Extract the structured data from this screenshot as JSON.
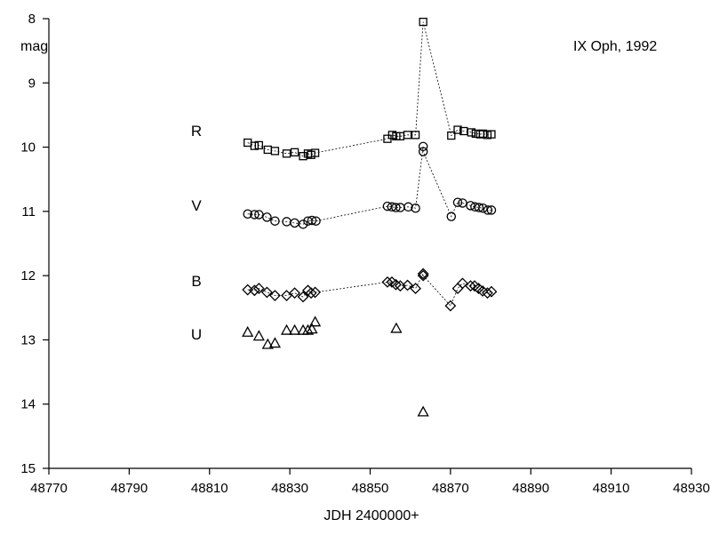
{
  "chart_data": {
    "type": "scatter",
    "title": "IX Oph,  1992",
    "xlabel": "JDH 2400000+",
    "ylabel": "mag",
    "xlim": [
      48770,
      48930
    ],
    "ylim": [
      8,
      15
    ],
    "y_inverted": true,
    "grid": false,
    "xticks": [
      "48770",
      "48790",
      "48810",
      "48830",
      "48850",
      "48870",
      "48890",
      "48910",
      "48930"
    ],
    "yticks": [
      "8",
      "9",
      "10",
      "11",
      "12",
      "13",
      "14",
      "15"
    ],
    "series": [
      {
        "name": "R",
        "marker": "square",
        "connected": true,
        "x": [
          48819.5,
          48821.2,
          48822.3,
          48824.5,
          48826.3,
          48829.2,
          48831.2,
          48833.3,
          48834.5,
          48835.3,
          48836.3,
          48854.3,
          48855.5,
          48856.5,
          48857.5,
          48859.3,
          48861.3,
          48863.2,
          48870.2,
          48871.8,
          48873.3,
          48875.2,
          48876.3,
          48877.4,
          48878.1,
          48879.2,
          48880.2
        ],
        "y": [
          9.93,
          9.98,
          9.97,
          10.04,
          10.06,
          10.1,
          10.08,
          10.14,
          10.1,
          10.12,
          10.09,
          9.87,
          9.81,
          9.83,
          9.83,
          9.81,
          9.81,
          8.05,
          9.82,
          9.73,
          9.75,
          9.77,
          9.79,
          9.8,
          9.79,
          9.81,
          9.8
        ]
      },
      {
        "name": "V",
        "marker": "circle",
        "connected": true,
        "x": [
          48819.5,
          48821.2,
          48822.3,
          48824.3,
          48826.3,
          48829.2,
          48831.2,
          48833.3,
          48834.5,
          48835.5,
          48836.5,
          48854.3,
          48855.4,
          48856.4,
          48857.5,
          48859.5,
          48861.3,
          48863.2,
          48863.2,
          48870.2,
          48871.8,
          48873.0,
          48875.0,
          48876.1,
          48877.1,
          48878.1,
          48879.3,
          48880.2
        ],
        "y": [
          11.04,
          11.05,
          11.05,
          11.09,
          11.15,
          11.16,
          11.18,
          11.2,
          11.15,
          11.14,
          11.15,
          10.92,
          10.93,
          10.94,
          10.94,
          10.93,
          10.95,
          9.99,
          10.07,
          11.08,
          10.86,
          10.87,
          10.91,
          10.93,
          10.94,
          10.95,
          10.98,
          10.98
        ]
      },
      {
        "name": "B",
        "marker": "diamond",
        "connected": true,
        "x": [
          48819.5,
          48821.2,
          48822.3,
          48824.3,
          48826.3,
          48829.2,
          48831.2,
          48833.3,
          48834.5,
          48835.3,
          48836.3,
          48854.3,
          48855.4,
          48856.4,
          48857.5,
          48859.3,
          48861.3,
          48863.2,
          48863.2,
          48870.0,
          48871.8,
          48873.0,
          48875.0,
          48876.0,
          48877.0,
          48878.0,
          48879.2,
          48880.2
        ],
        "y": [
          12.22,
          12.23,
          12.2,
          12.26,
          12.31,
          12.31,
          12.27,
          12.33,
          12.23,
          12.27,
          12.26,
          12.1,
          12.1,
          12.14,
          12.16,
          12.15,
          12.2,
          11.97,
          12.0,
          12.47,
          12.2,
          12.12,
          12.16,
          12.16,
          12.2,
          12.24,
          12.27,
          12.25
        ]
      },
      {
        "name": "U",
        "marker": "triangle",
        "connected": false,
        "x": [
          48819.5,
          48822.3,
          48824.5,
          48826.3,
          48829.2,
          48831.2,
          48833.3,
          48834.5,
          48835.5,
          48836.3,
          48856.5,
          48863.2
        ],
        "y": [
          12.88,
          12.94,
          13.07,
          13.05,
          12.85,
          12.85,
          12.85,
          12.85,
          12.83,
          12.72,
          12.82,
          14.12
        ]
      }
    ]
  }
}
